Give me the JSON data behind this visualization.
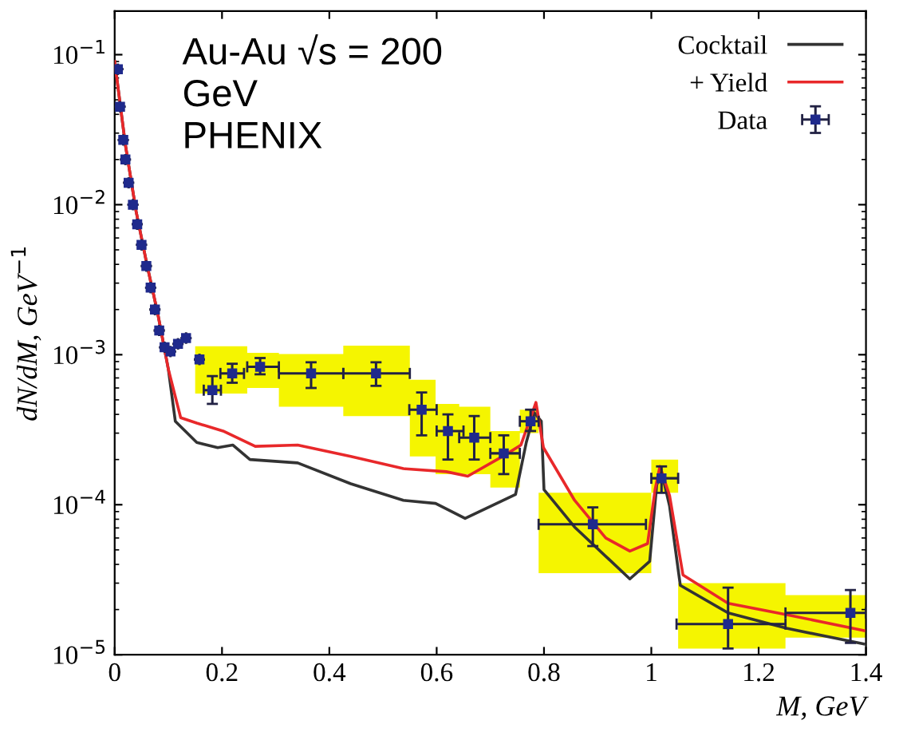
{
  "chart_data": {
    "type": "scatter",
    "xlabel": "M, GeV",
    "ylabel": "dN/dM, GeV$^{−1}$",
    "annotations": [
      "Au-Au √s = 200\nGeV\nPHENIX"
    ],
    "xlim": [
      0,
      1.4
    ],
    "ylim": [
      1e-05,
      0.195
    ],
    "log": "y",
    "xticks": [
      0,
      0.2,
      0.4,
      0.6,
      0.8,
      1,
      1.2,
      1.4
    ],
    "yticks": [
      {
        "value": 1e-05,
        "label": "10$^{−5}$"
      },
      {
        "value": 0.0001,
        "label": "10$^{−4}$"
      },
      {
        "value": 0.001,
        "label": "10$^{−3}$"
      },
      {
        "value": 0.01,
        "label": "10$^{−2}$"
      },
      {
        "value": 0.1,
        "label": "10$^{−1}$"
      }
    ],
    "grid": false,
    "legend": "top right",
    "series": [
      {
        "type": "step",
        "color": "#f5f500",
        "x": [
          0.15,
          0.247,
          0.306,
          0.426,
          0.55,
          0.598,
          0.642,
          0.7,
          0.755,
          0.79,
          1.0,
          1.05,
          1.25,
          1.4
        ],
        "values": [
          null,
          null,
          null,
          null,
          null,
          null,
          null,
          null,
          null,
          null,
          null,
          null,
          null,
          null
        ],
        "lower": [
          0.00055,
          0.0006,
          0.00045,
          0.00039,
          0.00021,
          0.00016,
          0.00016,
          0.00013,
          0.0003,
          3.5e-05,
          0.00012,
          1.1e-05,
          1.3e-05,
          1.3e-05
        ],
        "upper": [
          0.00114,
          0.00103,
          0.00101,
          0.00115,
          0.00068,
          0.00047,
          0.00045,
          0.00031,
          0.00043,
          0.00012,
          0.0002,
          3e-05,
          2.5e-05,
          2.5e-05
        ]
      },
      {
        "type": "line",
        "name": "Cocktail",
        "color": "#333333",
        "marker": "none",
        "x": [
          0.0,
          0.02,
          0.04,
          0.06,
          0.08,
          0.1,
          0.113,
          0.153,
          0.192,
          0.22,
          0.252,
          0.341,
          0.44,
          0.538,
          0.598,
          0.653,
          0.747,
          0.767,
          0.782,
          0.795,
          0.8,
          0.857,
          0.96,
          0.997,
          1.01,
          1.019,
          1.034,
          1.054,
          1.143,
          1.252,
          1.396
        ],
        "values": [
          0.09,
          0.025,
          0.009,
          0.004,
          0.0019,
          0.0008,
          0.00036,
          0.00026,
          0.00024,
          0.00025,
          0.0002,
          0.00019,
          0.000138,
          0.000107,
          0.000102,
          8.1e-05,
          0.000117,
          0.00026,
          0.00041,
          0.00036,
          0.000126,
          7.1e-05,
          3.2e-05,
          4.2e-05,
          0.000135,
          0.000166,
          9.8e-05,
          2.9e-05,
          1.9e-05,
          1.5e-05,
          1.18e-05
        ]
      },
      {
        "type": "line",
        "name": "+ Yield",
        "color": "#e8282a",
        "marker": "none",
        "x": [
          0.0,
          0.02,
          0.04,
          0.06,
          0.08,
          0.1,
          0.123,
          0.153,
          0.202,
          0.262,
          0.341,
          0.44,
          0.538,
          0.618,
          0.658,
          0.727,
          0.757,
          0.785,
          0.799,
          0.857,
          0.915,
          0.96,
          0.993,
          1.007,
          1.016,
          1.034,
          1.059,
          1.143,
          1.252,
          1.396
        ],
        "values": [
          0.09,
          0.025,
          0.009,
          0.004,
          0.0019,
          0.0008,
          0.00038,
          0.00035,
          0.00031,
          0.000245,
          0.00025,
          0.00021,
          0.000174,
          0.000166,
          0.000155,
          0.000214,
          0.00025,
          0.00048,
          0.00024,
          0.000107,
          6e-05,
          4.9e-05,
          5.5e-05,
          0.000126,
          0.00018,
          0.000115,
          3.4e-05,
          2.2e-05,
          1.85e-05,
          1.45e-05
        ]
      },
      {
        "name": "Data",
        "color": "#1f2a8c",
        "marker": "square",
        "x": [
          0.006,
          0.01,
          0.016,
          0.02,
          0.026,
          0.034,
          0.042,
          0.05,
          0.059,
          0.067,
          0.075,
          0.083,
          0.093,
          0.104,
          0.118,
          0.133,
          0.158,
          0.182,
          0.219,
          0.271,
          0.366,
          0.487,
          0.572,
          0.621,
          0.67,
          0.725,
          0.775,
          0.891,
          1.019,
          1.143,
          1.371
        ],
        "values": [
          0.08,
          0.045,
          0.027,
          0.02,
          0.014,
          0.01,
          0.0074,
          0.0054,
          0.0039,
          0.0028,
          0.002,
          0.00145,
          0.00112,
          0.00105,
          0.00118,
          0.00129,
          0.00093,
          0.00058,
          0.00075,
          0.00083,
          0.00075,
          0.00075,
          0.00043,
          0.00031,
          0.00028,
          0.00022,
          0.00036,
          7.4e-05,
          0.00015,
          1.6e-05,
          1.9e-05
        ],
        "errors": [
          null,
          null,
          null,
          null,
          null,
          null,
          null,
          null,
          null,
          null,
          null,
          null,
          null,
          null,
          null,
          null,
          null,
          [
            0.00047,
            0.00072
          ],
          [
            0.00065,
            0.00087
          ],
          [
            0.00074,
            0.00095
          ],
          [
            0.0006,
            0.00089
          ],
          [
            0.00062,
            0.00089
          ],
          [
            0.00029,
            0.00056
          ],
          [
            0.0002,
            0.0004
          ],
          [
            0.0002,
            0.00039
          ],
          [
            0.00016,
            0.00029
          ],
          [
            0.00031,
            0.00043
          ],
          [
            5.3e-05,
            9.6e-05
          ],
          [
            0.00012,
            0.00018
          ],
          [
            1.1e-05,
            2.8e-05
          ],
          [
            1.2e-05,
            2.7e-05
          ]
        ],
        "xerrors": [
          null,
          null,
          null,
          null,
          null,
          null,
          null,
          null,
          null,
          null,
          null,
          null,
          null,
          null,
          null,
          null,
          null,
          0.016,
          0.022,
          [
            0.247,
            0.306
          ],
          [
            0.306,
            0.426
          ],
          [
            0.426,
            0.55
          ],
          [
            0.549,
            0.6
          ],
          [
            0.6,
            0.65
          ],
          [
            0.642,
            0.7
          ],
          [
            0.7,
            0.755
          ],
          [
            0.755,
            0.79
          ],
          [
            0.79,
            0.99
          ],
          [
            1.0,
            1.05
          ],
          [
            1.047,
            1.25
          ],
          [
            1.25,
            1.4
          ]
        ]
      }
    ]
  }
}
